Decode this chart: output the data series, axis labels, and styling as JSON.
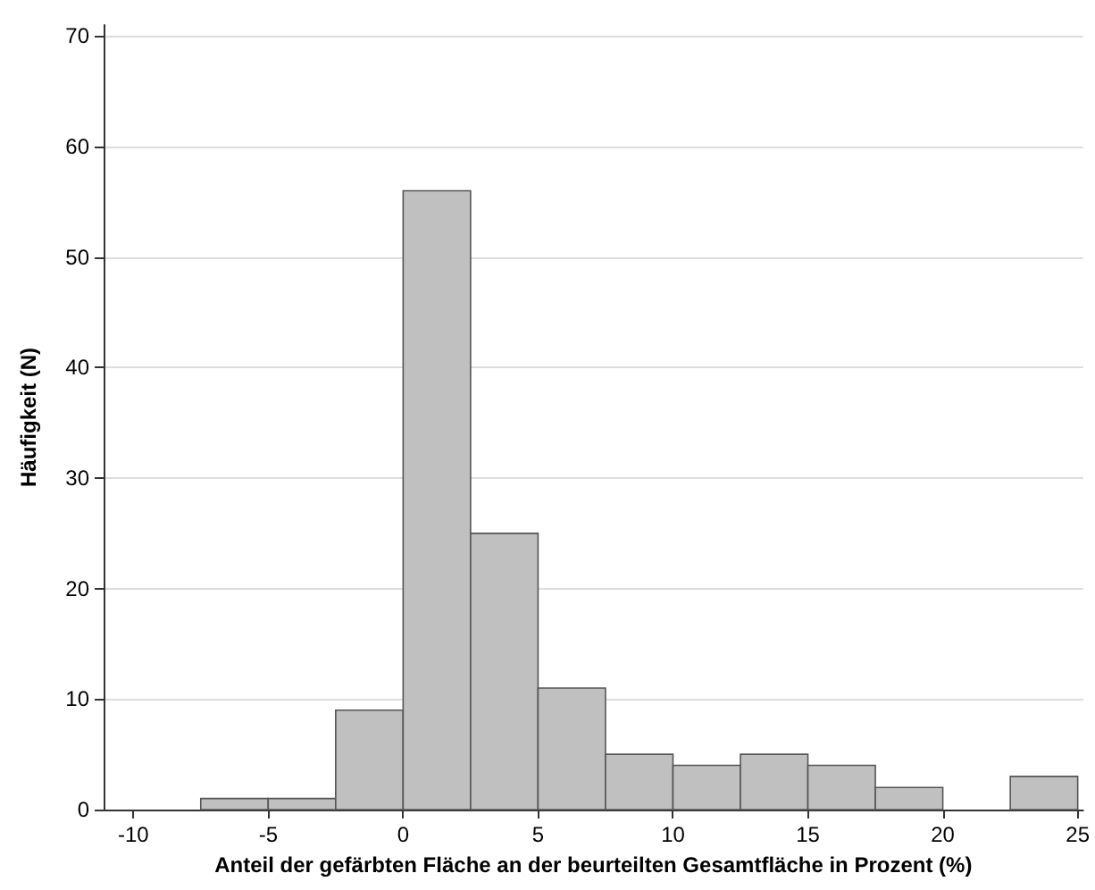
{
  "chart_data": {
    "type": "histogram",
    "xlabel": "Anteil der gefärbten Fläche an der beurteilten Gesamtfläche in Prozent (%)",
    "ylabel": "Häufigkeit (N)",
    "bins": [
      -7.5,
      -5,
      -2.5,
      0,
      2.5,
      5,
      7.5,
      10,
      12.5,
      15,
      17.5,
      20,
      22.5,
      25
    ],
    "values": [
      1,
      1,
      9,
      56,
      25,
      11,
      5,
      4,
      5,
      4,
      2,
      0,
      3
    ],
    "color": "#c0c0c0",
    "xlim": [
      -11.1,
      25.2
    ],
    "xticks": [
      -10,
      -5,
      0,
      5,
      10,
      15,
      20,
      25
    ],
    "ylim": [
      0,
      71
    ],
    "yticks": [
      0,
      10,
      20,
      30,
      40,
      50,
      60,
      70
    ],
    "grid": "y"
  }
}
